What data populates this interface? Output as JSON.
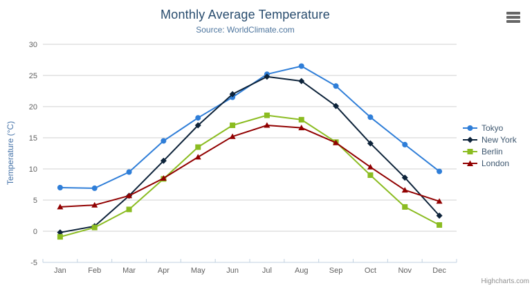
{
  "header": {
    "title": "Monthly Average Temperature",
    "subtitle": "Source: WorldClimate.com"
  },
  "export_menu": {
    "icon": "hamburger-menu-icon"
  },
  "credits": {
    "label": "Highcharts.com"
  },
  "legend": {
    "position": "right"
  },
  "chart_data": {
    "type": "line",
    "title": "Monthly Average Temperature",
    "subtitle": "Source: WorldClimate.com",
    "categories": [
      "Jan",
      "Feb",
      "Mar",
      "Apr",
      "May",
      "Jun",
      "Jul",
      "Aug",
      "Sep",
      "Oct",
      "Nov",
      "Dec"
    ],
    "xlabel": "",
    "ylabel": "Temperature (°C)",
    "ylim": [
      -5,
      30
    ],
    "ytick_interval": 5,
    "grid": true,
    "legend_position": "right",
    "series": [
      {
        "name": "Tokyo",
        "color": "#2f7ed8",
        "marker": "circle",
        "values": [
          7.0,
          6.9,
          9.5,
          14.5,
          18.2,
          21.5,
          25.2,
          26.5,
          23.3,
          18.3,
          13.9,
          9.6
        ]
      },
      {
        "name": "New York",
        "color": "#0d233a",
        "marker": "diamond",
        "values": [
          -0.2,
          0.8,
          5.7,
          11.3,
          17.0,
          22.0,
          24.8,
          24.1,
          20.1,
          14.1,
          8.6,
          2.5
        ]
      },
      {
        "name": "Berlin",
        "color": "#8bbc21",
        "marker": "square",
        "values": [
          -0.9,
          0.6,
          3.5,
          8.4,
          13.5,
          17.0,
          18.6,
          17.9,
          14.3,
          9.0,
          3.9,
          1.0
        ]
      },
      {
        "name": "London",
        "color": "#910000",
        "marker": "triangle",
        "values": [
          3.9,
          4.2,
          5.7,
          8.5,
          11.9,
          15.2,
          17.0,
          16.6,
          14.2,
          10.3,
          6.6,
          4.8
        ]
      }
    ]
  },
  "colors": {
    "title": "#274b6d",
    "subtitle": "#4d759e",
    "axis_label": "#606060",
    "axis_line": "#c0d0e0",
    "gridline": "#d2d2d2",
    "yaxis_title": "#4673a8",
    "legend_text": "#3e576f",
    "credits_text": "#909090",
    "menu_bars": "#666666"
  }
}
